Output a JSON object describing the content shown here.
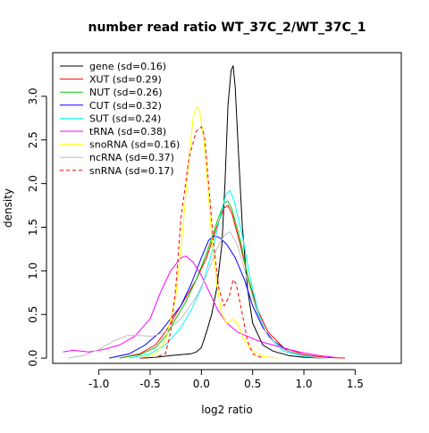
{
  "chart_data": {
    "type": "line",
    "title": "number read ratio WT_37C_2/WT_37C_1",
    "xlabel": "log2 ratio",
    "ylabel": "density",
    "xlim": [
      -1.45,
      1.95
    ],
    "ylim": [
      -0.06,
      3.5
    ],
    "xticks": [
      -1.0,
      -0.5,
      0.0,
      0.5,
      1.0,
      1.5
    ],
    "xtick_labels": [
      "-1.0",
      "-0.5",
      "0.0",
      "0.5",
      "1.0",
      "1.5"
    ],
    "yticks": [
      0.0,
      0.5,
      1.0,
      1.5,
      2.0,
      2.5,
      3.0
    ],
    "ytick_labels": [
      "0.0",
      "0.5",
      "1.0",
      "1.5",
      "2.0",
      "2.5",
      "3.0"
    ],
    "grid": false,
    "legend_position": "top-left",
    "series": [
      {
        "name": "gene (sd=0.16)",
        "color": "#000000",
        "dash": false,
        "points": [
          [
            -0.6,
            0
          ],
          [
            -0.45,
            0.01
          ],
          [
            -0.3,
            0.03
          ],
          [
            -0.2,
            0.04
          ],
          [
            -0.1,
            0.05
          ],
          [
            -0.05,
            0.07
          ],
          [
            0.0,
            0.12
          ],
          [
            0.05,
            0.3
          ],
          [
            0.1,
            0.5
          ],
          [
            0.15,
            0.8
          ],
          [
            0.2,
            1.3
          ],
          [
            0.23,
            2.0
          ],
          [
            0.26,
            2.9
          ],
          [
            0.29,
            3.3
          ],
          [
            0.31,
            3.35
          ],
          [
            0.33,
            3.1
          ],
          [
            0.36,
            2.4
          ],
          [
            0.4,
            1.5
          ],
          [
            0.45,
            0.8
          ],
          [
            0.5,
            0.4
          ],
          [
            0.6,
            0.15
          ],
          [
            0.7,
            0.08
          ],
          [
            0.85,
            0.03
          ],
          [
            1.0,
            0.01
          ],
          [
            1.2,
            0
          ]
        ]
      },
      {
        "name": "XUT (sd=0.29)",
        "color": "#ff0000",
        "dash": false,
        "points": [
          [
            -0.8,
            0
          ],
          [
            -0.6,
            0.05
          ],
          [
            -0.45,
            0.15
          ],
          [
            -0.35,
            0.3
          ],
          [
            -0.25,
            0.5
          ],
          [
            -0.15,
            0.7
          ],
          [
            -0.05,
            0.9
          ],
          [
            0.05,
            1.15
          ],
          [
            0.15,
            1.5
          ],
          [
            0.22,
            1.72
          ],
          [
            0.26,
            1.75
          ],
          [
            0.3,
            1.65
          ],
          [
            0.38,
            1.3
          ],
          [
            0.45,
            0.95
          ],
          [
            0.55,
            0.55
          ],
          [
            0.65,
            0.3
          ],
          [
            0.8,
            0.12
          ],
          [
            1.0,
            0.04
          ],
          [
            1.2,
            0.01
          ],
          [
            1.4,
            0
          ]
        ]
      },
      {
        "name": "NUT (sd=0.26)",
        "color": "#00cd00",
        "dash": false,
        "points": [
          [
            -0.8,
            0
          ],
          [
            -0.6,
            0.04
          ],
          [
            -0.45,
            0.12
          ],
          [
            -0.35,
            0.25
          ],
          [
            -0.25,
            0.45
          ],
          [
            -0.15,
            0.65
          ],
          [
            -0.05,
            0.9
          ],
          [
            0.05,
            1.2
          ],
          [
            0.15,
            1.55
          ],
          [
            0.22,
            1.78
          ],
          [
            0.26,
            1.8
          ],
          [
            0.3,
            1.7
          ],
          [
            0.38,
            1.35
          ],
          [
            0.45,
            0.95
          ],
          [
            0.55,
            0.5
          ],
          [
            0.65,
            0.25
          ],
          [
            0.8,
            0.1
          ],
          [
            1.0,
            0.02
          ],
          [
            1.2,
            0
          ]
        ]
      },
      {
        "name": "CUT (sd=0.32)",
        "color": "#0000ff",
        "dash": false,
        "points": [
          [
            -0.9,
            0
          ],
          [
            -0.7,
            0.05
          ],
          [
            -0.55,
            0.15
          ],
          [
            -0.4,
            0.3
          ],
          [
            -0.3,
            0.45
          ],
          [
            -0.2,
            0.6
          ],
          [
            -0.1,
            0.85
          ],
          [
            0.0,
            1.15
          ],
          [
            0.07,
            1.35
          ],
          [
            0.12,
            1.4
          ],
          [
            0.18,
            1.38
          ],
          [
            0.25,
            1.3
          ],
          [
            0.33,
            1.15
          ],
          [
            0.42,
            0.9
          ],
          [
            0.5,
            0.6
          ],
          [
            0.6,
            0.35
          ],
          [
            0.7,
            0.2
          ],
          [
            0.85,
            0.08
          ],
          [
            1.0,
            0.03
          ],
          [
            1.2,
            0
          ]
        ]
      },
      {
        "name": "SUT (sd=0.24)",
        "color": "#00ffff",
        "dash": false,
        "points": [
          [
            -0.7,
            0
          ],
          [
            -0.5,
            0.05
          ],
          [
            -0.35,
            0.15
          ],
          [
            -0.2,
            0.35
          ],
          [
            -0.1,
            0.55
          ],
          [
            0.0,
            0.8
          ],
          [
            0.1,
            1.2
          ],
          [
            0.18,
            1.6
          ],
          [
            0.24,
            1.88
          ],
          [
            0.28,
            1.92
          ],
          [
            0.32,
            1.8
          ],
          [
            0.4,
            1.4
          ],
          [
            0.48,
            0.9
          ],
          [
            0.56,
            0.5
          ],
          [
            0.65,
            0.25
          ],
          [
            0.8,
            0.08
          ],
          [
            1.0,
            0.02
          ],
          [
            1.2,
            0
          ]
        ]
      },
      {
        "name": "tRNA (sd=0.38)",
        "color": "#ff00ff",
        "dash": false,
        "points": [
          [
            -1.35,
            0.07
          ],
          [
            -1.25,
            0.09
          ],
          [
            -1.1,
            0.07
          ],
          [
            -0.95,
            0.1
          ],
          [
            -0.8,
            0.15
          ],
          [
            -0.65,
            0.25
          ],
          [
            -0.5,
            0.45
          ],
          [
            -0.4,
            0.75
          ],
          [
            -0.3,
            1.0
          ],
          [
            -0.2,
            1.15
          ],
          [
            -0.15,
            1.17
          ],
          [
            -0.08,
            1.1
          ],
          [
            0.0,
            0.95
          ],
          [
            0.08,
            0.75
          ],
          [
            0.16,
            0.55
          ],
          [
            0.25,
            0.4
          ],
          [
            0.35,
            0.3
          ],
          [
            0.45,
            0.25
          ],
          [
            0.55,
            0.2
          ],
          [
            0.7,
            0.15
          ],
          [
            0.85,
            0.1
          ],
          [
            1.0,
            0.06
          ],
          [
            1.15,
            0.03
          ],
          [
            1.3,
            0.01
          ]
        ]
      },
      {
        "name": "snoRNA (sd=0.16)",
        "color": "#ffff00",
        "dash": false,
        "points": [
          [
            -0.6,
            0
          ],
          [
            -0.45,
            0.05
          ],
          [
            -0.35,
            0.2
          ],
          [
            -0.25,
            0.7
          ],
          [
            -0.18,
            1.5
          ],
          [
            -0.12,
            2.3
          ],
          [
            -0.08,
            2.75
          ],
          [
            -0.05,
            2.88
          ],
          [
            -0.02,
            2.85
          ],
          [
            0.02,
            2.55
          ],
          [
            0.06,
            2.0
          ],
          [
            0.1,
            1.4
          ],
          [
            0.15,
            0.85
          ],
          [
            0.2,
            0.5
          ],
          [
            0.25,
            0.4
          ],
          [
            0.3,
            0.45
          ],
          [
            0.35,
            0.4
          ],
          [
            0.42,
            0.2
          ],
          [
            0.5,
            0.08
          ],
          [
            0.6,
            0.02
          ],
          [
            0.75,
            0
          ]
        ]
      },
      {
        "name": "ncRNA (sd=0.37)",
        "color": "#bebebe",
        "dash": false,
        "points": [
          [
            -1.3,
            0
          ],
          [
            -1.15,
            0.03
          ],
          [
            -1.0,
            0.1
          ],
          [
            -0.85,
            0.2
          ],
          [
            -0.72,
            0.26
          ],
          [
            -0.6,
            0.26
          ],
          [
            -0.48,
            0.25
          ],
          [
            -0.35,
            0.3
          ],
          [
            -0.2,
            0.45
          ],
          [
            -0.05,
            0.7
          ],
          [
            0.05,
            0.95
          ],
          [
            0.15,
            1.25
          ],
          [
            0.22,
            1.4
          ],
          [
            0.28,
            1.45
          ],
          [
            0.35,
            1.3
          ],
          [
            0.45,
            0.9
          ],
          [
            0.55,
            0.5
          ],
          [
            0.65,
            0.25
          ],
          [
            0.8,
            0.1
          ],
          [
            1.0,
            0.03
          ],
          [
            1.2,
            0
          ]
        ]
      },
      {
        "name": "snRNA (sd=0.17)",
        "color": "#ff0000",
        "dash": true,
        "points": [
          [
            -0.6,
            0
          ],
          [
            -0.45,
            0.01
          ],
          [
            -0.35,
            0.05
          ],
          [
            -0.3,
            0.3
          ],
          [
            -0.25,
            0.8
          ],
          [
            -0.2,
            1.6
          ],
          [
            -0.12,
            2.3
          ],
          [
            -0.05,
            2.6
          ],
          [
            0.0,
            2.65
          ],
          [
            0.03,
            2.55
          ],
          [
            0.07,
            2.0
          ],
          [
            0.12,
            1.3
          ],
          [
            0.17,
            0.8
          ],
          [
            0.22,
            0.6
          ],
          [
            0.27,
            0.7
          ],
          [
            0.31,
            0.9
          ],
          [
            0.34,
            0.85
          ],
          [
            0.4,
            0.5
          ],
          [
            0.45,
            0.2
          ],
          [
            0.5,
            0.05
          ],
          [
            0.6,
            0
          ]
        ]
      }
    ]
  }
}
